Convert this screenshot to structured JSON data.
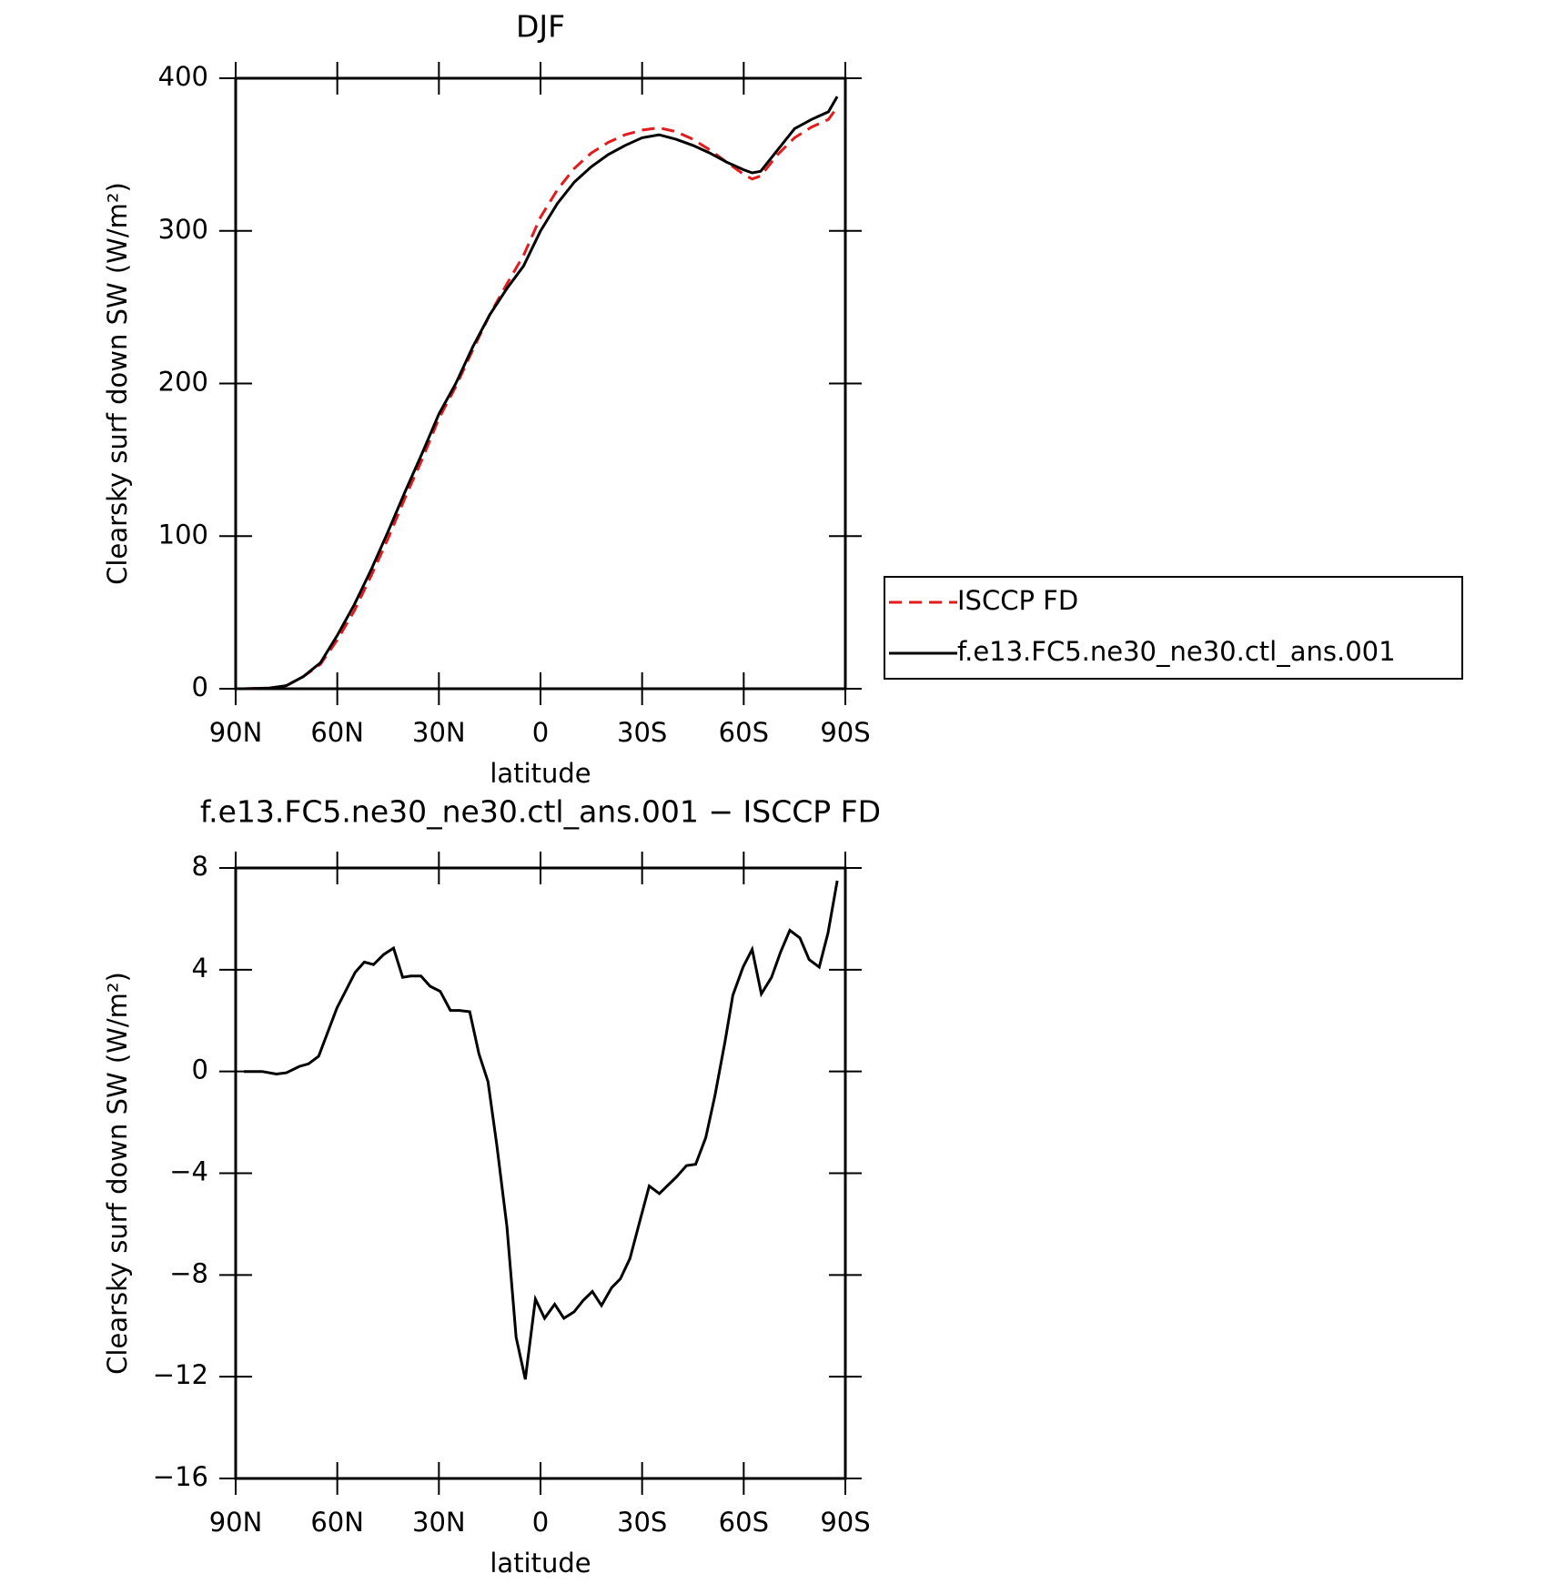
{
  "chart_data": [
    {
      "type": "line",
      "title": "DJF",
      "ylabel": "Clearsky surf down SW (W/m²)",
      "xlabel": "latitude",
      "xlim": [
        90,
        -90
      ],
      "xticks": [
        {
          "value": 90,
          "label": "90N"
        },
        {
          "value": 60,
          "label": "60N"
        },
        {
          "value": 30,
          "label": "30N"
        },
        0,
        {
          "value": -30,
          "label": "30S"
        },
        {
          "value": -60,
          "label": "60S"
        },
        {
          "value": -90,
          "label": "90S"
        }
      ],
      "ylim": [
        0,
        400
      ],
      "yticks": [
        0,
        100,
        200,
        300,
        400
      ],
      "legend": "outside-right",
      "series": [
        {
          "name": "ISCCP FD",
          "color": "#e41a1c",
          "style": "dashed",
          "x": [
            87.6,
            80,
            75,
            70,
            65,
            60,
            55,
            50,
            45,
            40,
            35,
            30,
            25,
            20,
            15,
            10,
            5,
            0,
            -5,
            -10,
            -15,
            -20,
            -25,
            -30,
            -35,
            -40,
            -45,
            -50,
            -55,
            -60,
            -62.5,
            -65,
            -70,
            -75,
            -80,
            -85,
            -87.6
          ],
          "values": [
            0,
            0.5,
            2,
            8,
            16,
            32,
            51,
            74,
            98.5,
            125,
            150,
            177,
            198,
            222,
            245,
            265,
            284,
            309,
            327,
            341,
            351,
            358,
            363,
            366,
            367.5,
            365,
            360,
            353,
            345,
            337,
            334,
            336,
            350,
            361,
            368,
            373,
            381
          ]
        },
        {
          "name": "f.e13.FC5.ne30_ne30.ctl_ans.001",
          "color": "#000000",
          "style": "solid",
          "x": [
            87.6,
            80,
            75,
            70,
            65,
            60,
            55,
            50,
            45,
            40,
            35,
            30,
            25,
            20,
            15,
            10,
            5,
            0,
            -5,
            -10,
            -15,
            -20,
            -25,
            -30,
            -35,
            -40,
            -45,
            -50,
            -55,
            -60,
            -62.5,
            -65,
            -70,
            -75,
            -80,
            -85,
            -87.6
          ],
          "values": [
            0,
            0.5,
            2,
            8,
            17,
            35,
            55,
            78,
            103,
            129,
            154,
            180,
            200,
            224,
            245,
            262,
            277,
            300,
            318,
            332,
            342,
            350,
            356,
            361,
            363,
            360,
            356,
            351,
            345,
            340,
            338,
            339,
            353,
            367,
            373,
            378,
            388
          ]
        }
      ]
    },
    {
      "type": "line",
      "title": "f.e13.FC5.ne30_ne30.ctl_ans.001 − ISCCP FD",
      "ylabel": "Clearsky surf down SW (W/m²)",
      "xlabel": "latitude",
      "xlim": [
        90,
        -90
      ],
      "xticks": [
        {
          "value": 90,
          "label": "90N"
        },
        {
          "value": 60,
          "label": "60N"
        },
        {
          "value": 30,
          "label": "30N"
        },
        0,
        {
          "value": -30,
          "label": "30S"
        },
        {
          "value": -60,
          "label": "60S"
        },
        {
          "value": -90,
          "label": "90S"
        }
      ],
      "ylim": [
        -16,
        8
      ],
      "yticks": [
        {
          "value": -16,
          "label": "−16"
        },
        {
          "value": -12,
          "label": "−12"
        },
        {
          "value": -8,
          "label": "−8"
        },
        {
          "value": -4,
          "label": "−4"
        },
        0,
        4,
        8
      ],
      "series": [
        {
          "color": "#000000",
          "style": "solid",
          "x": [
            87.6,
            82.2,
            78,
            75,
            71.2,
            68.5,
            65.5,
            60.1,
            54.7,
            52,
            49.3,
            46.3,
            43.4,
            40.7,
            38.3,
            35.3,
            32.6,
            29.6,
            26.6,
            23.9,
            20.9,
            18.2,
            15.5,
            12.9,
            9.9,
            7.2,
            4.5,
            1.5,
            -1.2,
            -4.2,
            -6.9,
            -9.9,
            -12.6,
            -15.3,
            -18,
            -21,
            -23.6,
            -26.4,
            -29.1,
            -32.1,
            -35.1,
            -37.4,
            -40.1,
            -43.1,
            -45.8,
            -48.8,
            -51.5,
            -54.5,
            -56.8,
            -59.8,
            -62.5,
            -65.2,
            -68.2,
            -70.9,
            -73.6,
            -76.6,
            -79.3,
            -82.3,
            -84.9,
            -87.6
          ],
          "values": [
            0,
            0,
            -0.1,
            -0.05,
            0.2,
            0.3,
            0.6,
            2.5,
            3.9,
            4.3,
            4.2,
            4.6,
            4.85,
            3.7,
            3.75,
            3.75,
            3.35,
            3.15,
            2.4,
            2.4,
            2.35,
            0.7,
            -0.4,
            -2.9,
            -6.1,
            -10.45,
            -12.1,
            -8.95,
            -9.7,
            -9.15,
            -9.7,
            -9.45,
            -9.0,
            -8.65,
            -9.2,
            -8.5,
            -8.15,
            -7.35,
            -6.0,
            -4.5,
            -4.8,
            -4.5,
            -4.15,
            -3.7,
            -3.65,
            -2.6,
            -0.95,
            1.2,
            3.0,
            4.1,
            4.8,
            3.05,
            3.7,
            4.7,
            5.55,
            5.25,
            4.4,
            4.1,
            5.45,
            7.5
          ]
        }
      ]
    }
  ]
}
